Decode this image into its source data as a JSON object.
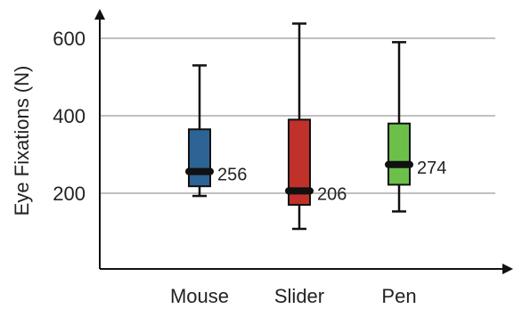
{
  "chart_data": {
    "type": "boxplot",
    "title": "",
    "xlabel": "",
    "ylabel": "Eye Fixations (N)",
    "ylim": [
      0,
      650
    ],
    "yticks": [
      200,
      400,
      600
    ],
    "grid": true,
    "categories": [
      "Mouse",
      "Slider",
      "Pen"
    ],
    "boxes": [
      {
        "category": "Mouse",
        "min": 193,
        "q1": 218,
        "median": 256,
        "q3": 365,
        "max": 530,
        "median_label": "256",
        "color": "#2c6496"
      },
      {
        "category": "Slider",
        "min": 108,
        "q1": 170,
        "median": 206,
        "q3": 390,
        "max": 638,
        "median_label": "206",
        "color": "#c0312a"
      },
      {
        "category": "Pen",
        "min": 153,
        "q1": 222,
        "median": 274,
        "q3": 380,
        "max": 590,
        "median_label": "274",
        "color": "#6cc04a"
      }
    ]
  }
}
